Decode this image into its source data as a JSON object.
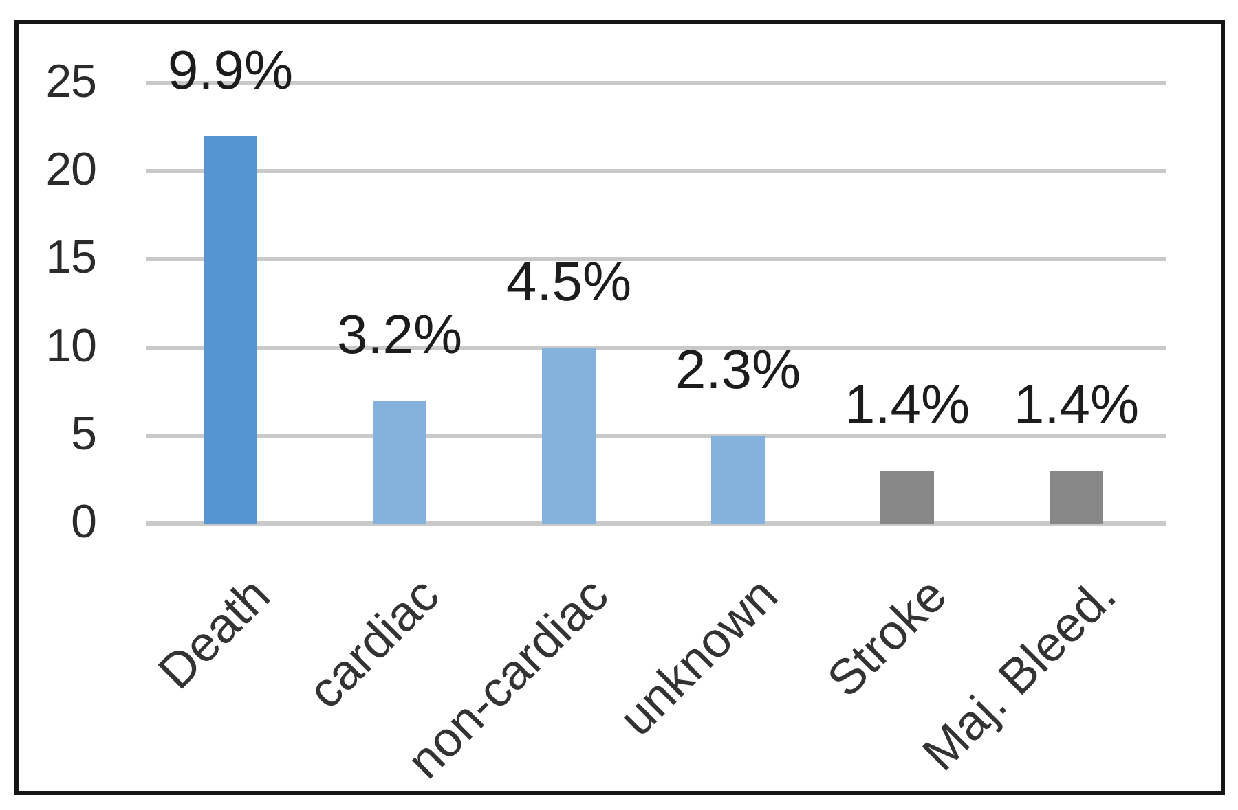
{
  "chart_data": {
    "type": "bar",
    "title": "",
    "categories": [
      "Death",
      "cardiac",
      "non-cardiac",
      "unknown",
      "Stroke",
      "Maj. Bleed."
    ],
    "values": [
      22,
      7,
      10,
      5,
      3,
      3
    ],
    "value_labels": [
      "9.9%",
      "3.2%",
      "4.5%",
      "2.3%",
      "1.4%",
      "1.4%"
    ],
    "bar_colors": [
      "#5596d2",
      "#84b1de",
      "#84b1de",
      "#84b1de",
      "#878787",
      "#878787"
    ],
    "y_ticks": [
      25,
      20,
      15,
      10,
      5,
      0
    ],
    "y_tick_labels": [
      "25",
      "20",
      "15",
      "10",
      "5",
      "0"
    ],
    "ylim": [
      0,
      25
    ],
    "xlabel": "",
    "ylabel": "",
    "grid": true,
    "legend": false,
    "gridline_color": "#c9c9c9",
    "frame_color": "#161616",
    "value_label_color": "#1c1c1c",
    "axis_tick_color": "#2b2b2b",
    "category_label_color": "#333333",
    "background_color": "#ffffff"
  }
}
